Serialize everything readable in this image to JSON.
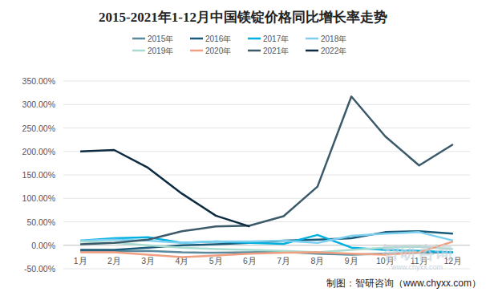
{
  "chart_data": {
    "type": "line",
    "title": "2015-2021年1-12月中国镁锭价格同比增长率走势",
    "categories": [
      "1月",
      "2月",
      "3月",
      "4月",
      "5月",
      "6月",
      "7月",
      "8月",
      "9月",
      "10月",
      "11月",
      "12月"
    ],
    "series": [
      {
        "name": "2015年",
        "color": "#5b8a9e",
        "values": [
          -12,
          -13,
          -12,
          -15,
          -16,
          -15,
          -14,
          -18,
          -20,
          -18,
          -16,
          -15
        ]
      },
      {
        "name": "2016年",
        "color": "#1b5b7a",
        "values": [
          -10,
          -10,
          -5,
          0,
          2,
          5,
          10,
          12,
          15,
          28,
          30,
          25
        ]
      },
      {
        "name": "2017年",
        "color": "#00b0e0",
        "values": [
          10,
          15,
          17,
          5,
          8,
          5,
          3,
          22,
          -5,
          -10,
          -12,
          -15
        ]
      },
      {
        "name": "2018年",
        "color": "#7dcff0",
        "values": [
          10,
          12,
          10,
          5,
          8,
          8,
          10,
          5,
          20,
          25,
          28,
          10
        ]
      },
      {
        "name": "2019年",
        "color": "#a8dcd0",
        "values": [
          8,
          5,
          0,
          -5,
          -8,
          -10,
          -12,
          -15,
          -10,
          -5,
          -3,
          -8
        ]
      },
      {
        "name": "2020年",
        "color": "#f0a080",
        "values": [
          -15,
          -15,
          -20,
          -25,
          -22,
          -18,
          -16,
          -15,
          -18,
          -20,
          -15,
          8
        ]
      },
      {
        "name": "2021年",
        "color": "#3c5a6a",
        "values": [
          2,
          5,
          12,
          30,
          40,
          42,
          62,
          125,
          317,
          232,
          170,
          215
        ]
      },
      {
        "name": "2022年",
        "color": "#0c2a40",
        "values": [
          200,
          203,
          165,
          110,
          63,
          40,
          null,
          null,
          null,
          null,
          null,
          null
        ]
      }
    ],
    "ylim": [
      -50,
      350
    ],
    "yticks": [
      {
        "value": -50,
        "label": "-50.00%"
      },
      {
        "value": 0,
        "label": "0.00%"
      },
      {
        "value": 50,
        "label": "50.00%"
      },
      {
        "value": 100,
        "label": "100.00%"
      },
      {
        "value": 150,
        "label": "150.00%"
      },
      {
        "value": 200,
        "label": "200.00%"
      },
      {
        "value": 250,
        "label": "250.00%"
      },
      {
        "value": 300,
        "label": "300.00%"
      },
      {
        "value": 350,
        "label": "350.00%"
      }
    ],
    "grid": true,
    "legend": "top",
    "annotations": [
      "智研咨询",
      "www.chyxx.com",
      "制图：智研咨询（www.chyxx.com）"
    ]
  }
}
